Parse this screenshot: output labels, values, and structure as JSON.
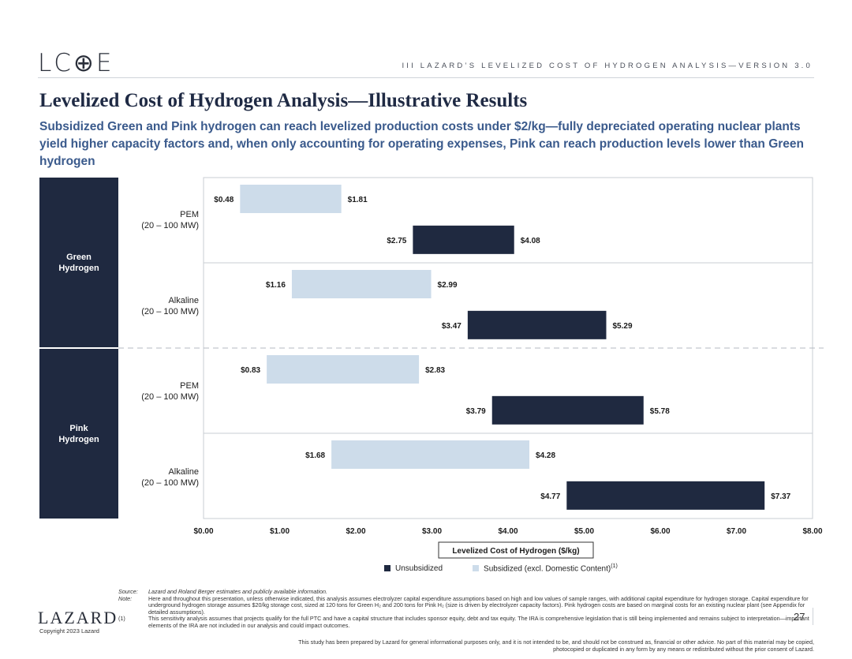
{
  "logo": "LC⊕E",
  "header": "III   LAZARD’S LEVELIZED COST OF HYDROGEN ANALYSIS—VERSION 3.0",
  "title": "Levelized Cost of Hydrogen Analysis—Illustrative Results",
  "subtitle": "Subsidized Green and Pink hydrogen can reach levelized production costs under $2/kg—fully depreciated operating nuclear plants yield higher capacity factors and, when only accounting for operating expenses, Pink can reach production levels lower than Green hydrogen",
  "groups": [
    {
      "label_line1": "Green",
      "label_line2": "Hydrogen"
    },
    {
      "label_line1": "Pink",
      "label_line2": "Hydrogen"
    }
  ],
  "colors": {
    "unsubsidized": "#1f2940",
    "subsidized": "#cddcea",
    "band": "#1f2940"
  },
  "chart_data": {
    "type": "bar",
    "orientation": "horizontal floating range",
    "categories": [
      {
        "group": "Green Hydrogen",
        "tech": "PEM",
        "size": "(20 – 100 MW)"
      },
      {
        "group": "Green Hydrogen",
        "tech": "Alkaline",
        "size": "(20 – 100 MW)"
      },
      {
        "group": "Pink Hydrogen",
        "tech": "PEM",
        "size": "(20 – 100 MW)"
      },
      {
        "group": "Pink Hydrogen",
        "tech": "Alkaline",
        "size": "(20 – 100 MW)"
      }
    ],
    "series": [
      {
        "name": "Subsidized (excl. Domestic Content)",
        "ranges": [
          [
            0.48,
            1.81
          ],
          [
            1.16,
            2.99
          ],
          [
            0.83,
            2.83
          ],
          [
            1.68,
            4.28
          ]
        ],
        "labels": [
          [
            "$0.48",
            "$1.81"
          ],
          [
            "$1.16",
            "$2.99"
          ],
          [
            "$0.83",
            "$2.83"
          ],
          [
            "$1.68",
            "$4.28"
          ]
        ]
      },
      {
        "name": "Unsubsidized",
        "ranges": [
          [
            2.75,
            4.08
          ],
          [
            3.47,
            5.29
          ],
          [
            3.79,
            5.78
          ],
          [
            4.77,
            7.37
          ]
        ],
        "labels": [
          [
            "$2.75",
            "$4.08"
          ],
          [
            "$3.47",
            "$5.29"
          ],
          [
            "$3.79",
            "$5.78"
          ],
          [
            "$4.77",
            "$7.37"
          ]
        ]
      }
    ],
    "xlabel": "Levelized Cost of Hydrogen ($/kg)",
    "xlim": [
      0,
      8
    ],
    "xticks": [
      "$0.00",
      "$1.00",
      "$2.00",
      "$3.00",
      "$4.00",
      "$5.00",
      "$6.00",
      "$7.00",
      "$8.00"
    ],
    "legend": {
      "placement": "bottom",
      "unsub": "Unsubsidized",
      "sub": "Subsidized (excl. Domestic Content)",
      "sub_sup": "(1)"
    }
  },
  "notes": {
    "source_label": "Source:",
    "source": "Lazard and Roland Berger estimates and publicly available information.",
    "note_label": "Note:",
    "note": "Here and throughout this presentation, unless otherwise indicated, this analysis assumes electrolyzer capital expenditure assumptions based on high and low values of sample ranges, with additional capital expenditure for hydrogen storage. Capital expenditure for underground hydrogen storage assumes $20/kg storage cost, sized at 120 tons for Green H₂ and 200 tons for Pink H₂ (size is driven by electrolyzer capacity factors). Pink hydrogen costs are based on marginal costs for an existing nuclear plant (see Appendix for detailed assumptions).",
    "fn_label": "(1)",
    "fn": "This sensitivity analysis assumes that projects qualify for the full PTC and have a capital structure that includes sponsor equity, debt and tax equity. The IRA is comprehensive legislation that is still being implemented and remains subject to interpretation—important elements of the IRA are not included in our analysis and could impact outcomes."
  },
  "footer": {
    "brand": "LAZARD",
    "copyright": "Copyright 2023 Lazard",
    "page": "27",
    "disclaimer": "This study has been prepared by Lazard for general informational purposes only, and it is not intended to be, and should not be construed as, financial or other advice. No part of this material may be copied, photocopied or duplicated in any form by any means or redistributed without the prior consent of Lazard."
  }
}
